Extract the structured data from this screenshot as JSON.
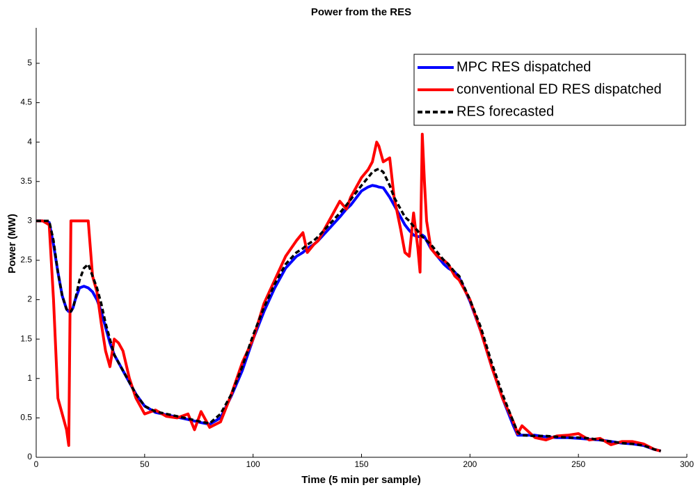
{
  "chart_data": {
    "type": "line",
    "title": "Power from the RES",
    "x_label": "Time (5 min per sample)",
    "y_label": "Power (MW)",
    "xlim": [
      0,
      300
    ],
    "xticks": [
      0,
      50,
      100,
      150,
      200,
      250,
      300
    ],
    "ylim": [
      0,
      5.45
    ],
    "yticks": [
      0,
      0.5,
      1,
      1.5,
      2,
      2.5,
      3,
      3.5,
      4,
      4.5,
      5
    ],
    "legend": "upper-right",
    "x": [
      0,
      3,
      6,
      8,
      10,
      12,
      14,
      15,
      16,
      17,
      18,
      20,
      22,
      24,
      26,
      28,
      30,
      32,
      34,
      36,
      38,
      40,
      43,
      46,
      50,
      55,
      60,
      65,
      70,
      73,
      76,
      80,
      85,
      90,
      95,
      100,
      105,
      110,
      115,
      120,
      123,
      125,
      128,
      130,
      135,
      140,
      143,
      145,
      150,
      153,
      155,
      157,
      158,
      160,
      163,
      165,
      168,
      170,
      172,
      174,
      176,
      177,
      178,
      179,
      180,
      182,
      185,
      188,
      190,
      193,
      195,
      200,
      205,
      210,
      215,
      220,
      222,
      224,
      230,
      235,
      240,
      245,
      250,
      255,
      260,
      265,
      270,
      275,
      280,
      285,
      288
    ],
    "series": [
      {
        "name": "MPC RES dispatched",
        "color": "#0000ff",
        "dashed": false,
        "values": [
          3.0,
          3.0,
          2.98,
          2.7,
          2.35,
          2.05,
          1.88,
          1.85,
          1.85,
          1.9,
          2.0,
          2.15,
          2.17,
          2.15,
          2.1,
          2.0,
          1.85,
          1.65,
          1.45,
          1.3,
          1.2,
          1.1,
          0.95,
          0.8,
          0.65,
          0.57,
          0.54,
          0.51,
          0.48,
          0.46,
          0.44,
          0.42,
          0.5,
          0.78,
          1.1,
          1.5,
          1.85,
          2.15,
          2.4,
          2.55,
          2.6,
          2.65,
          2.7,
          2.75,
          2.9,
          3.05,
          3.15,
          3.2,
          3.38,
          3.43,
          3.45,
          3.44,
          3.43,
          3.42,
          3.3,
          3.2,
          3.05,
          2.95,
          2.88,
          2.82,
          2.8,
          2.8,
          2.82,
          2.8,
          2.75,
          2.65,
          2.55,
          2.45,
          2.4,
          2.35,
          2.28,
          1.98,
          1.6,
          1.15,
          0.75,
          0.4,
          0.28,
          0.28,
          0.28,
          0.26,
          0.25,
          0.25,
          0.24,
          0.23,
          0.22,
          0.2,
          0.18,
          0.17,
          0.15,
          0.1,
          0.08
        ]
      },
      {
        "name": "conventional ED RES dispatched",
        "color": "#ff0000",
        "dashed": false,
        "values": [
          3.0,
          3.0,
          2.95,
          2.0,
          0.75,
          0.55,
          0.35,
          0.15,
          3.0,
          3.0,
          3.0,
          3.0,
          3.0,
          3.0,
          2.3,
          2.1,
          1.7,
          1.35,
          1.15,
          1.5,
          1.45,
          1.35,
          1.0,
          0.75,
          0.55,
          0.6,
          0.52,
          0.5,
          0.55,
          0.35,
          0.58,
          0.38,
          0.45,
          0.8,
          1.2,
          1.5,
          1.95,
          2.25,
          2.55,
          2.75,
          2.85,
          2.6,
          2.7,
          2.75,
          3.0,
          3.25,
          3.15,
          3.3,
          3.55,
          3.65,
          3.75,
          4.0,
          3.95,
          3.75,
          3.8,
          3.3,
          2.9,
          2.6,
          2.55,
          3.1,
          2.65,
          2.35,
          4.1,
          3.5,
          3.0,
          2.65,
          2.55,
          2.5,
          2.45,
          2.3,
          2.25,
          2.0,
          1.6,
          1.15,
          0.75,
          0.45,
          0.3,
          0.4,
          0.25,
          0.22,
          0.27,
          0.28,
          0.3,
          0.22,
          0.24,
          0.16,
          0.2,
          0.2,
          0.17,
          0.1,
          0.08
        ]
      },
      {
        "name": "RES forecasted",
        "color": "#000000",
        "dashed": true,
        "values": [
          3.0,
          3.0,
          3.0,
          2.75,
          2.35,
          2.05,
          1.88,
          1.85,
          1.85,
          1.9,
          2.0,
          2.25,
          2.4,
          2.45,
          2.3,
          2.15,
          1.95,
          1.7,
          1.5,
          1.3,
          1.2,
          1.1,
          0.95,
          0.8,
          0.65,
          0.58,
          0.55,
          0.52,
          0.49,
          0.47,
          0.45,
          0.43,
          0.55,
          0.8,
          1.15,
          1.55,
          1.9,
          2.2,
          2.45,
          2.6,
          2.65,
          2.7,
          2.75,
          2.8,
          2.95,
          3.1,
          3.2,
          3.27,
          3.45,
          3.55,
          3.62,
          3.65,
          3.66,
          3.62,
          3.45,
          3.3,
          3.15,
          3.05,
          3.0,
          2.93,
          2.87,
          2.83,
          2.8,
          2.78,
          2.75,
          2.7,
          2.6,
          2.5,
          2.45,
          2.35,
          2.3,
          2.0,
          1.65,
          1.2,
          0.8,
          0.45,
          0.32,
          0.28,
          0.27,
          0.27,
          0.26,
          0.25,
          0.25,
          0.24,
          0.22,
          0.2,
          0.18,
          0.17,
          0.15,
          0.1,
          0.08
        ]
      }
    ]
  }
}
